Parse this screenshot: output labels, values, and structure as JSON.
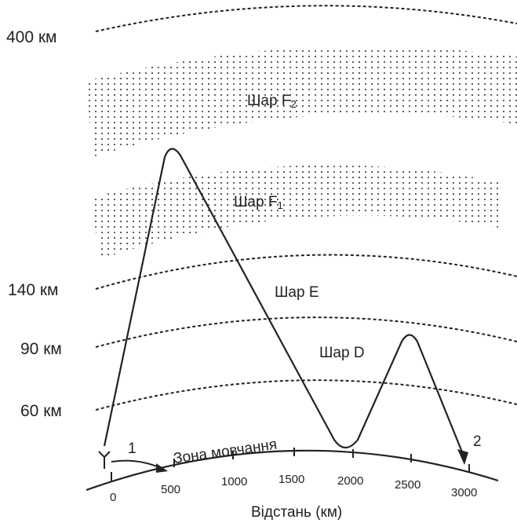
{
  "altitudes": [
    {
      "key": "400",
      "label": "400 км"
    },
    {
      "key": "140",
      "label": "140 км"
    },
    {
      "key": "90",
      "label": "90 км"
    },
    {
      "key": "60",
      "label": "60 км"
    }
  ],
  "layers": {
    "f2": {
      "label_main": "Шар F",
      "label_sub": "2"
    },
    "f1": {
      "label_main": "Шар F",
      "label_sub": "1"
    },
    "e": {
      "label": "Шар E"
    },
    "d": {
      "label": "Шар D"
    }
  },
  "ground": {
    "silence_zone_label": "Зона мовчання",
    "axis_title": "Відстань (км)",
    "ticks": [
      "0",
      "500",
      "1000",
      "1500",
      "2000",
      "2500",
      "3000"
    ]
  },
  "markers": {
    "start": "1",
    "end": "2"
  }
}
